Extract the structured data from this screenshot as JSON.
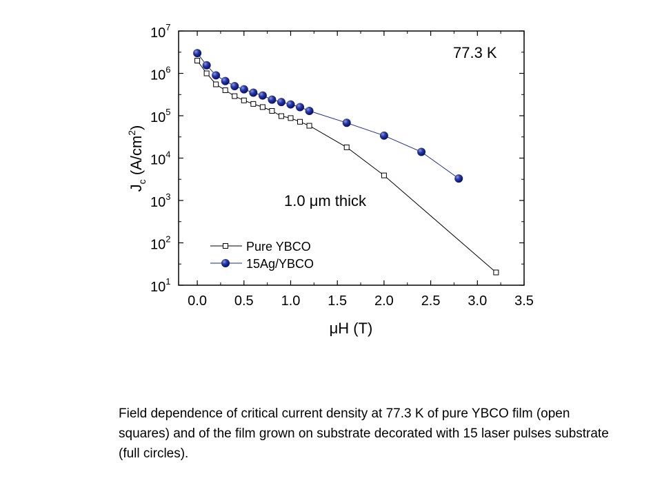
{
  "chart_data": {
    "type": "scatter",
    "xlabel": "μH (T)",
    "ylabel_main": "J",
    "ylabel_sub": "c",
    "ylabel_unit": " (A/cm",
    "ylabel_unit_sup": "2",
    "ylabel_close": ")",
    "xlim": [
      -0.2,
      3.5
    ],
    "ylim_log10": [
      1,
      7
    ],
    "yscale": "log",
    "x_ticks": [
      "0.0",
      "0.5",
      "1.0",
      "1.5",
      "2.0",
      "2.5",
      "3.0",
      "3.5"
    ],
    "y_ticks": [
      {
        "base": "10",
        "exp": "1"
      },
      {
        "base": "10",
        "exp": "2"
      },
      {
        "base": "10",
        "exp": "3"
      },
      {
        "base": "10",
        "exp": "4"
      },
      {
        "base": "10",
        "exp": "5"
      },
      {
        "base": "10",
        "exp": "6"
      },
      {
        "base": "10",
        "exp": "7"
      }
    ],
    "annotations": {
      "temperature": "77.3 K",
      "thickness": "1.0 μm thick"
    },
    "legend_position": "lower-left",
    "series": [
      {
        "name": "Pure YBCO",
        "marker": "open-square",
        "x": [
          0.0,
          0.1,
          0.2,
          0.3,
          0.4,
          0.5,
          0.6,
          0.7,
          0.8,
          0.9,
          1.0,
          1.1,
          1.2,
          1.6,
          2.0,
          3.2
        ],
        "y": [
          2000000,
          1000000,
          550000,
          400000,
          290000,
          230000,
          190000,
          160000,
          130000,
          98000,
          88000,
          72000,
          58000,
          18000,
          3900,
          20
        ]
      },
      {
        "name": "15Ag/YBCO",
        "marker": "filled-circle",
        "x": [
          0.0,
          0.1,
          0.2,
          0.3,
          0.4,
          0.5,
          0.6,
          0.7,
          0.8,
          0.9,
          1.0,
          1.1,
          1.2,
          1.6,
          2.0,
          2.4,
          2.8
        ],
        "y": [
          3000000,
          1550000,
          900000,
          660000,
          500000,
          420000,
          350000,
          300000,
          240000,
          210000,
          185000,
          160000,
          130000,
          68000,
          34000,
          14000,
          3300
        ]
      }
    ],
    "colors": {
      "axis": "#000000",
      "pure_marker_fill": "#ffffff",
      "circle_fill": "#1a2a8c",
      "circle_highlight": "#8c98e6",
      "line_15ag": "#1a2a8c"
    }
  },
  "caption": "Field dependence of critical current density at 77.3 K of pure YBCO film (open squares) and of the film grown on substrate decorated with 15 laser pulses substrate (full circles)."
}
